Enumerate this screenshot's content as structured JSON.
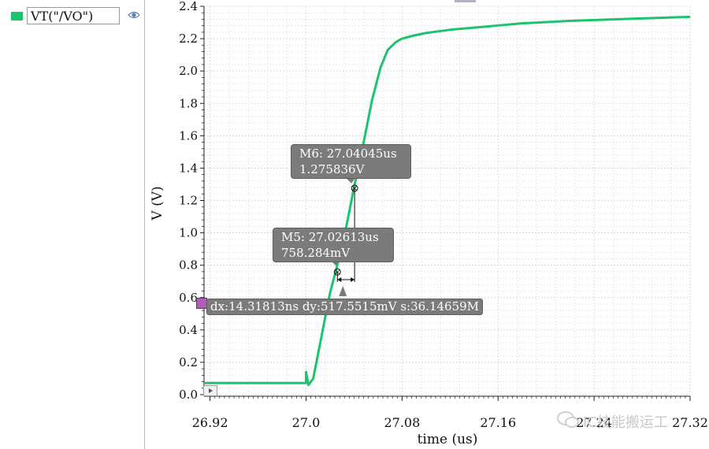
{
  "legend": {
    "label": "VT(\"/VO\")",
    "swatch_color": "#1ec36d",
    "icon": "eye-icon"
  },
  "chart_data": {
    "type": "line",
    "xlabel": "time (us)",
    "ylabel": "V (V)",
    "xlim": [
      26.915,
      27.32
    ],
    "ylim": [
      0.0,
      2.4
    ],
    "x_ticks": [
      "26.92",
      "27.0",
      "27.08",
      "27.16",
      "27.24",
      "27.32"
    ],
    "y_ticks": [
      "0.0",
      "0.2",
      "0.4",
      "0.6",
      "0.8",
      "1.0",
      "1.2",
      "1.4",
      "1.6",
      "1.8",
      "2.0",
      "2.2",
      "2.4"
    ],
    "grid": true,
    "series": [
      {
        "name": "VT(\"/VO\")",
        "color": "#1ec36d",
        "x": [
          26.915,
          27.0,
          27.0,
          27.002,
          27.006,
          27.01,
          27.015,
          27.02,
          27.026,
          27.032,
          27.04,
          27.048,
          27.055,
          27.062,
          27.068,
          27.075,
          27.08,
          27.09,
          27.1,
          27.12,
          27.15,
          27.18,
          27.22,
          27.26,
          27.3,
          27.32
        ],
        "y": [
          0.072,
          0.072,
          0.14,
          0.06,
          0.1,
          0.25,
          0.44,
          0.63,
          0.8,
          0.98,
          1.28,
          1.56,
          1.82,
          2.02,
          2.13,
          2.18,
          2.2,
          2.22,
          2.235,
          2.255,
          2.275,
          2.295,
          2.31,
          2.32,
          2.33,
          2.335
        ]
      }
    ],
    "markers": [
      {
        "id": "M6",
        "x": 27.04045,
        "y": 1.275836,
        "line1": "M6: 27.04045us",
        "line2": "1.275836V"
      },
      {
        "id": "M5",
        "x": 27.02613,
        "y": 0.758284,
        "line1": "M5: 27.02613us",
        "line2": "758.284mV"
      }
    ],
    "delta_label": "dx:14.31813ns dy:517.5515mV s:36.14659M"
  },
  "watermark": "IC技能搬运工",
  "colors": {
    "grid": "#d2d2d2",
    "marker_box": "#7b7b7b",
    "delta_icon": "#b05fb5"
  }
}
